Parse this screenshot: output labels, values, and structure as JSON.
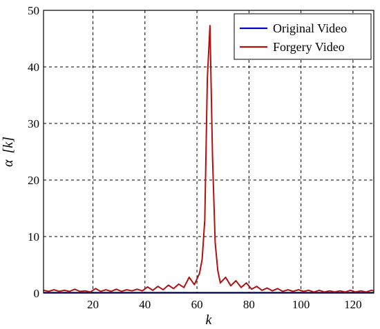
{
  "chart_data": {
    "type": "line",
    "title": "",
    "xlabel": "k",
    "ylabel_main": "α",
    "ylabel_arg": "[k]",
    "xlim": [
      1,
      128
    ],
    "ylim": [
      0,
      50
    ],
    "xticks": [
      20,
      40,
      60,
      80,
      100,
      120
    ],
    "yticks": [
      0,
      10,
      20,
      30,
      40,
      50
    ],
    "grid": true,
    "legend_position": "top-right",
    "series": [
      {
        "name": "Original Video",
        "color": "#0000cc",
        "x": [
          1,
          16,
          32,
          48,
          64,
          80,
          96,
          112,
          128
        ],
        "y": [
          0.1,
          0.1,
          0.1,
          0.1,
          0.1,
          0.1,
          0.1,
          0.1,
          0.1
        ]
      },
      {
        "name": "Forgery Video",
        "color": "#b01010",
        "x": [
          1,
          3,
          5,
          7,
          9,
          11,
          13,
          15,
          17,
          19,
          21,
          23,
          25,
          27,
          29,
          31,
          33,
          35,
          37,
          39,
          41,
          43,
          45,
          47,
          49,
          51,
          53,
          55,
          57,
          59,
          61,
          62,
          63,
          64,
          65,
          66,
          67,
          68,
          69,
          71,
          73,
          75,
          77,
          79,
          81,
          83,
          85,
          87,
          89,
          91,
          93,
          95,
          97,
          99,
          101,
          103,
          105,
          107,
          109,
          111,
          113,
          115,
          117,
          119,
          121,
          123,
          125,
          127,
          128
        ],
        "y": [
          0.5,
          0.3,
          0.6,
          0.3,
          0.5,
          0.3,
          0.7,
          0.3,
          0.4,
          0.2,
          0.8,
          0.3,
          0.6,
          0.3,
          0.7,
          0.3,
          0.6,
          0.4,
          0.7,
          0.4,
          1.1,
          0.5,
          1.2,
          0.6,
          1.4,
          0.8,
          1.6,
          1.0,
          2.8,
          1.5,
          3.5,
          6.0,
          13.0,
          38.0,
          47.3,
          24.0,
          9.0,
          4.0,
          1.8,
          2.8,
          1.3,
          2.2,
          1.0,
          1.8,
          0.7,
          1.2,
          0.5,
          0.9,
          0.4,
          0.8,
          0.3,
          0.6,
          0.3,
          0.6,
          0.3,
          0.5,
          0.2,
          0.5,
          0.2,
          0.4,
          0.2,
          0.4,
          0.2,
          0.5,
          0.2,
          0.4,
          0.2,
          0.5,
          0.4
        ]
      }
    ]
  }
}
